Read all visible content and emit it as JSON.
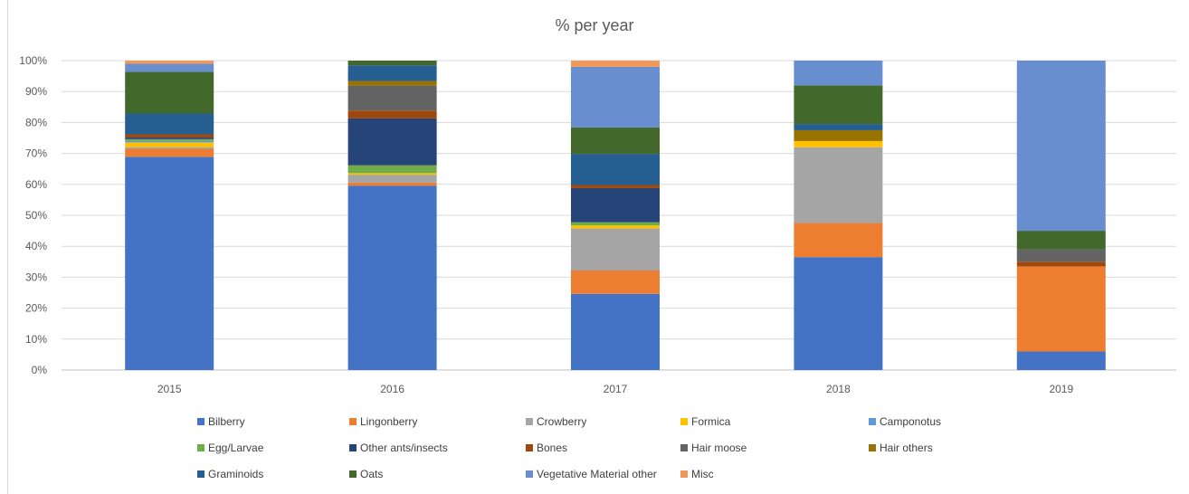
{
  "chart_data": {
    "type": "bar",
    "stacked": "percent",
    "title": "% per year",
    "xlabel": "",
    "ylabel": "",
    "ylim": [
      0,
      100
    ],
    "yticks": [
      "0%",
      "10%",
      "20%",
      "30%",
      "40%",
      "50%",
      "60%",
      "70%",
      "80%",
      "90%",
      "100%"
    ],
    "grid": true,
    "legend_position": "bottom",
    "categories": [
      "2015",
      "2016",
      "2017",
      "2018",
      "2019"
    ],
    "series": [
      {
        "name": "Bilberry",
        "color": "#4472C4",
        "values": [
          66.5,
          59,
          24.5,
          36.5,
          6
        ]
      },
      {
        "name": "Lingonberry",
        "color": "#ED7D31",
        "values": [
          2.5,
          1,
          7.5,
          11,
          27.5
        ]
      },
      {
        "name": "Crowberry",
        "color": "#A5A5A5",
        "values": [
          0.5,
          2.5,
          13.5,
          24.5,
          0
        ]
      },
      {
        "name": "Formica",
        "color": "#FFC000",
        "values": [
          1.5,
          0.5,
          1,
          2,
          0
        ]
      },
      {
        "name": "Camponotus",
        "color": "#5B9BD5",
        "values": [
          0.5,
          0,
          0,
          0,
          0
        ]
      },
      {
        "name": "Egg/Larvae",
        "color": "#70AD47",
        "values": [
          0.5,
          2.5,
          1,
          0,
          0
        ]
      },
      {
        "name": "Other ants/insects",
        "color": "#264478",
        "values": [
          0.5,
          15,
          11,
          0,
          0
        ]
      },
      {
        "name": "Bones",
        "color": "#9E480E",
        "values": [
          1,
          2.5,
          1,
          0,
          1.5
        ]
      },
      {
        "name": "Hair moose",
        "color": "#636363",
        "values": [
          0,
          8,
          0,
          0,
          4
        ]
      },
      {
        "name": "Hair others",
        "color": "#997300",
        "values": [
          0,
          1.5,
          0,
          3.5,
          0
        ]
      },
      {
        "name": "Graminoids",
        "color": "#255E91",
        "values": [
          6.5,
          5,
          10,
          2,
          0
        ]
      },
      {
        "name": "Oats",
        "color": "#43682B",
        "values": [
          13,
          1.5,
          8.5,
          12.5,
          6
        ]
      },
      {
        "name": "Vegetative Material other",
        "color": "#698ED0",
        "values": [
          2.5,
          0,
          19.5,
          8,
          55
        ]
      },
      {
        "name": "Misc",
        "color": "#F1975A",
        "values": [
          1,
          0,
          2,
          0,
          0
        ]
      }
    ]
  }
}
